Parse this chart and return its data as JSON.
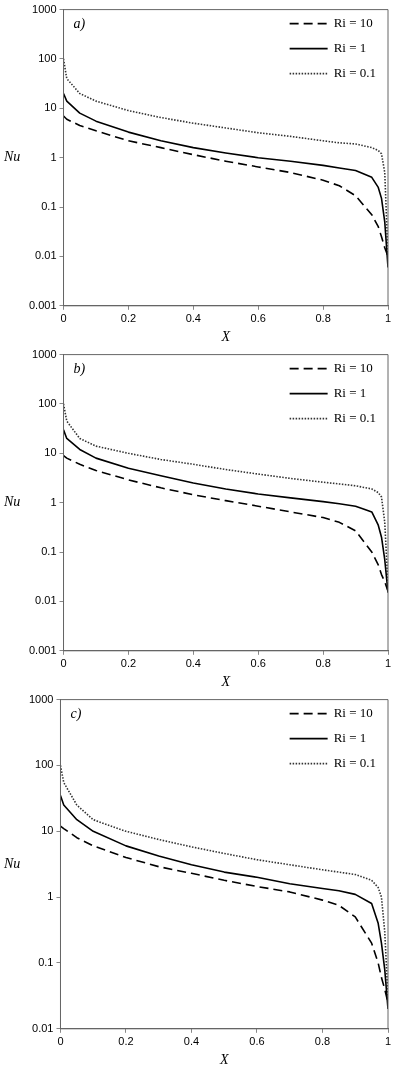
{
  "chart_data": [
    {
      "type": "line",
      "annotations": [
        "a)"
      ],
      "xlabel": "X",
      "ylabel": "Nu",
      "log": "y",
      "grid": false,
      "legend": "top right",
      "xlim": [
        0,
        1
      ],
      "xticks": [
        0,
        0.2,
        0.4,
        0.6,
        0.8,
        1
      ],
      "ylim": [
        0.001,
        1000
      ],
      "yticks": [
        0.001,
        0.01,
        0.1,
        1,
        10,
        100,
        1000
      ],
      "x": [
        0,
        0.01,
        0.05,
        0.1,
        0.2,
        0.3,
        0.4,
        0.5,
        0.6,
        0.7,
        0.8,
        0.85,
        0.9,
        0.95,
        0.97,
        0.98,
        0.99,
        1
      ],
      "series": [
        {
          "name": "Ri = 10",
          "color": "#000000",
          "line_style": "dashed",
          "values": [
            7,
            6,
            4.5,
            3.5,
            2.2,
            1.6,
            1.15,
            0.85,
            0.65,
            0.5,
            0.35,
            0.27,
            0.17,
            0.07,
            0.04,
            0.025,
            0.015,
            0.01
          ]
        },
        {
          "name": "Ri = 1",
          "color": "#000000",
          "line_style": "solid",
          "values": [
            20,
            14,
            8,
            5.5,
            3.3,
            2.2,
            1.6,
            1.25,
            1,
            0.85,
            0.7,
            0.62,
            0.55,
            0.4,
            0.25,
            0.15,
            0.05,
            0.006
          ]
        },
        {
          "name": "Ri = 0.1",
          "color": "#333333",
          "line_style": "dotted",
          "values": [
            100,
            40,
            20,
            14,
            9,
            6.5,
            5,
            4,
            3.2,
            2.7,
            2.2,
            2,
            1.9,
            1.6,
            1.4,
            1.2,
            0.5,
            0.01
          ]
        }
      ]
    },
    {
      "type": "line",
      "annotations": [
        "b)"
      ],
      "xlabel": "X",
      "ylabel": "Nu",
      "log": "y",
      "grid": false,
      "legend": "top right",
      "xlim": [
        0,
        1
      ],
      "xticks": [
        0,
        0.2,
        0.4,
        0.6,
        0.8,
        1
      ],
      "ylim": [
        0.001,
        1000
      ],
      "yticks": [
        0.001,
        0.01,
        0.1,
        1,
        10,
        100,
        1000
      ],
      "x": [
        0,
        0.01,
        0.05,
        0.1,
        0.2,
        0.3,
        0.4,
        0.5,
        0.6,
        0.7,
        0.8,
        0.85,
        0.9,
        0.95,
        0.97,
        0.98,
        0.99,
        1
      ],
      "series": [
        {
          "name": "Ri = 10",
          "color": "#000000",
          "line_style": "dashed",
          "values": [
            9,
            8,
            6,
            4.5,
            2.9,
            2,
            1.45,
            1.1,
            0.85,
            0.65,
            0.5,
            0.4,
            0.27,
            0.1,
            0.055,
            0.035,
            0.025,
            0.016
          ]
        },
        {
          "name": "Ri = 1",
          "color": "#000000",
          "line_style": "solid",
          "values": [
            30,
            20,
            12,
            8,
            5,
            3.5,
            2.5,
            1.9,
            1.5,
            1.25,
            1.05,
            0.95,
            0.85,
            0.65,
            0.35,
            0.2,
            0.07,
            0.015
          ]
        },
        {
          "name": "Ri = 0.1",
          "color": "#333333",
          "line_style": "dotted",
          "values": [
            100,
            45,
            20,
            14,
            10,
            7.5,
            6,
            4.7,
            3.8,
            3.1,
            2.6,
            2.4,
            2.2,
            1.9,
            1.6,
            1.3,
            0.4,
            0.02
          ]
        }
      ]
    },
    {
      "type": "line",
      "annotations": [
        "c)"
      ],
      "xlabel": "X",
      "ylabel": "Nu",
      "log": "y",
      "grid": false,
      "legend": "top right",
      "xlim": [
        0,
        1
      ],
      "xticks": [
        0,
        0.2,
        0.4,
        0.6,
        0.8,
        1
      ],
      "ylim": [
        0.01,
        1000
      ],
      "yticks": [
        0.01,
        0.1,
        1,
        10,
        100,
        1000
      ],
      "x": [
        0,
        0.01,
        0.05,
        0.1,
        0.2,
        0.3,
        0.4,
        0.5,
        0.6,
        0.7,
        0.8,
        0.85,
        0.9,
        0.95,
        0.97,
        0.98,
        0.99,
        1
      ],
      "series": [
        {
          "name": "Ri = 10",
          "color": "#000000",
          "line_style": "dashed",
          "values": [
            12,
            11,
            8,
            6,
            4,
            2.9,
            2.3,
            1.8,
            1.45,
            1.2,
            0.9,
            0.75,
            0.5,
            0.2,
            0.1,
            0.06,
            0.04,
            0.025
          ]
        },
        {
          "name": "Ri = 1",
          "color": "#000000",
          "line_style": "solid",
          "values": [
            35,
            25,
            15,
            10,
            6,
            4.2,
            3.1,
            2.4,
            2,
            1.6,
            1.35,
            1.25,
            1.1,
            0.8,
            0.4,
            0.2,
            0.08,
            0.02
          ]
        },
        {
          "name": "Ri = 0.1",
          "color": "#333333",
          "line_style": "dotted",
          "values": [
            100,
            55,
            25,
            15,
            10,
            7.5,
            5.8,
            4.6,
            3.7,
            3.1,
            2.6,
            2.4,
            2.2,
            1.8,
            1.4,
            1,
            0.3,
            0.03
          ]
        }
      ]
    }
  ]
}
